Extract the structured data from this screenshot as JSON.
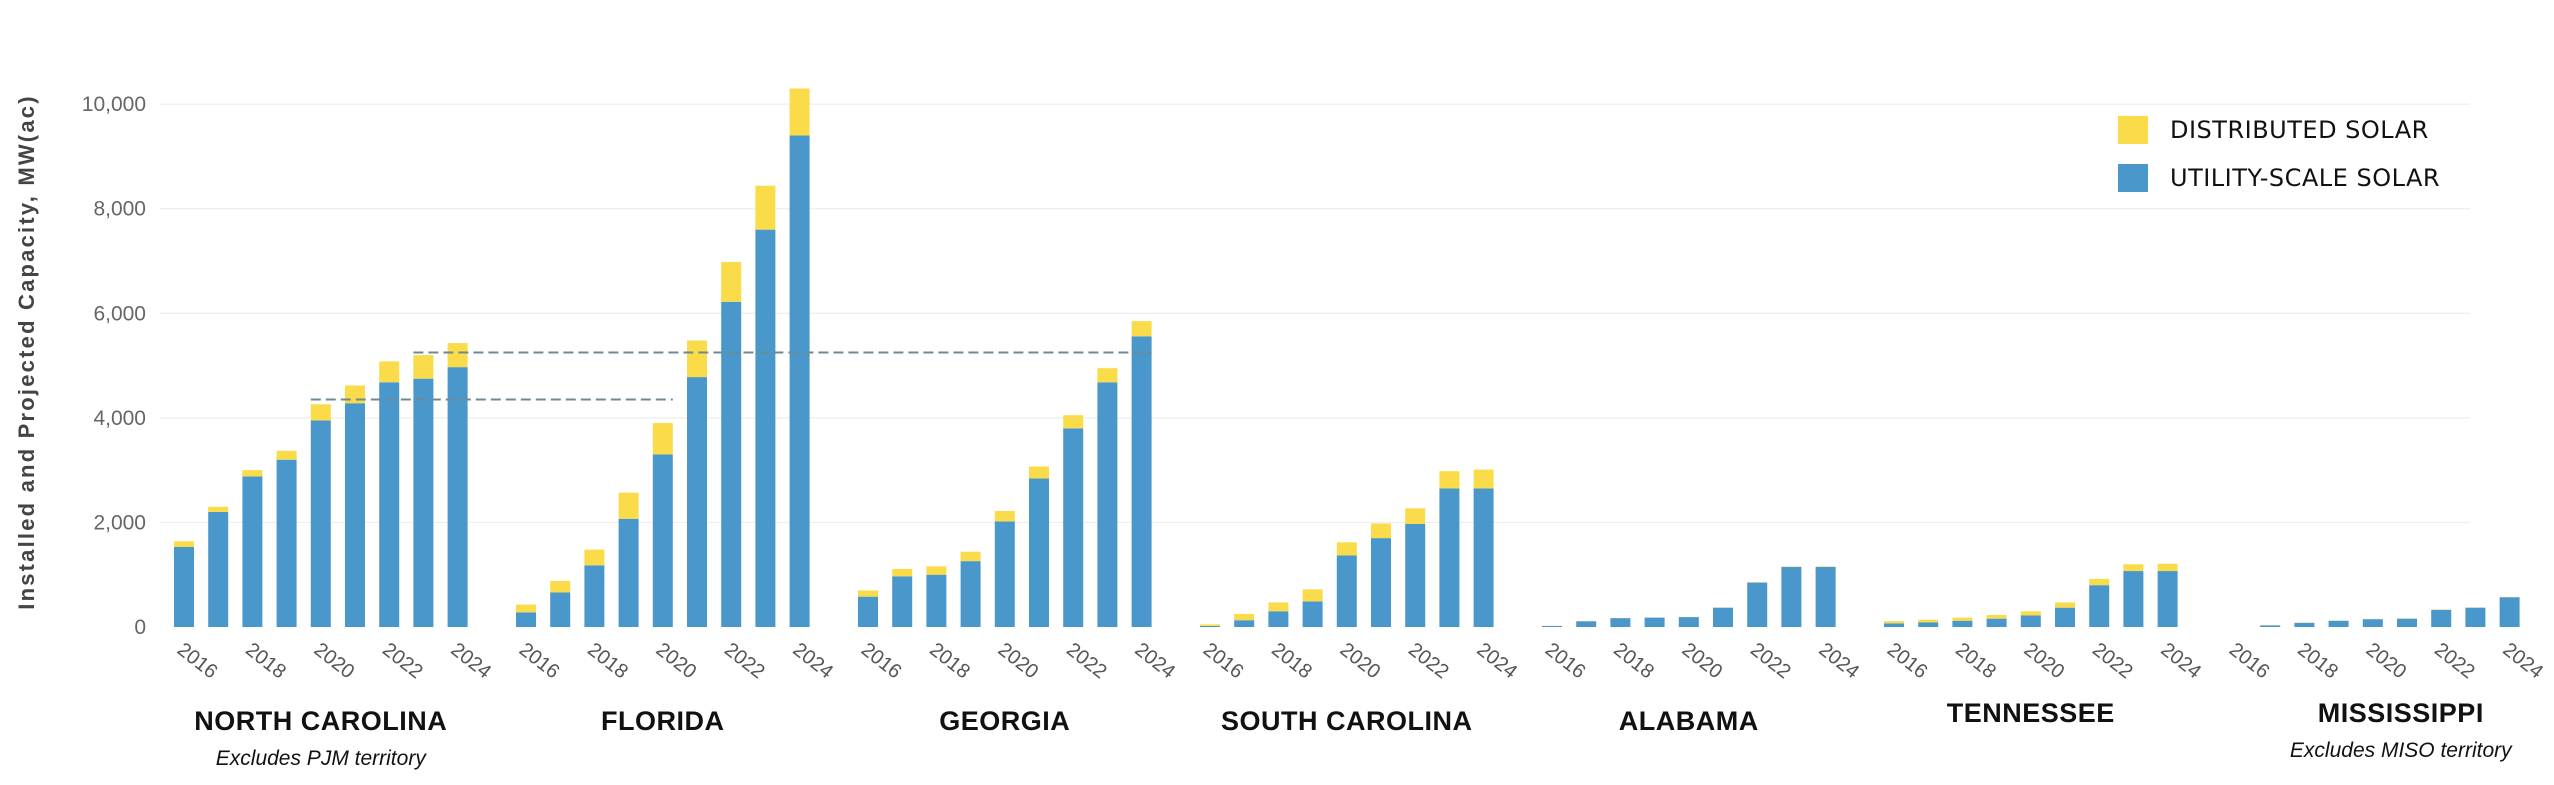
{
  "colors": {
    "distributed": "#FADB4A",
    "utility": "#4A98CB",
    "grid": "#eeeeee",
    "axis_text": "#666666",
    "dashed": "#6e8a95"
  },
  "legend": {
    "distributed_label": "DISTRIBUTED SOLAR",
    "utility_label": "UTILITY-SCALE SOLAR"
  },
  "chart_data": {
    "type": "bar",
    "stacked": true,
    "ylabel": "Installed and Projected Capacity, MW(ac)",
    "ylim": [
      0,
      10500
    ],
    "yticks": [
      "0",
      "2,000",
      "4,000",
      "6,000",
      "8,000",
      "10,000"
    ],
    "ytick_values": [
      0,
      2000,
      4000,
      6000,
      8000,
      10000
    ],
    "grid": true,
    "legend_position": "top-right",
    "years": [
      2016,
      2017,
      2018,
      2019,
      2020,
      2021,
      2022,
      2023,
      2024
    ],
    "year_labels": [
      "2016",
      "2018",
      "2020",
      "2022",
      "2024"
    ],
    "groups": [
      {
        "name": "NORTH CAROLINA",
        "note": "Excludes PJM territory",
        "utility": [
          1530,
          2200,
          2880,
          3200,
          3950,
          4280,
          4680,
          4750,
          4970
        ],
        "distributed": [
          110,
          100,
          120,
          170,
          310,
          340,
          400,
          450,
          460
        ]
      },
      {
        "name": "FLORIDA",
        "note": "",
        "utility": [
          280,
          660,
          1180,
          2070,
          3300,
          4780,
          6220,
          7600,
          9400
        ],
        "distributed": [
          150,
          220,
          300,
          500,
          600,
          700,
          760,
          840,
          900
        ]
      },
      {
        "name": "GEORGIA",
        "note": "",
        "utility": [
          580,
          970,
          1000,
          1260,
          2020,
          2840,
          3800,
          4680,
          5560
        ],
        "distributed": [
          120,
          140,
          160,
          180,
          200,
          230,
          250,
          270,
          290
        ]
      },
      {
        "name": "SOUTH CAROLINA",
        "note": "",
        "utility": [
          20,
          130,
          300,
          490,
          1370,
          1700,
          1970,
          2650,
          2650
        ],
        "distributed": [
          30,
          120,
          170,
          230,
          250,
          280,
          300,
          330,
          360
        ]
      },
      {
        "name": "ALABAMA",
        "note": "",
        "utility": [
          20,
          110,
          170,
          180,
          190,
          370,
          850,
          1150,
          1150
        ],
        "distributed": [
          2,
          3,
          3,
          3,
          4,
          5,
          6,
          7,
          8
        ]
      },
      {
        "name": "TENNESSEE",
        "note": "",
        "utility": [
          70,
          90,
          120,
          160,
          220,
          370,
          800,
          1070,
          1070
        ],
        "distributed": [
          40,
          50,
          60,
          70,
          80,
          100,
          120,
          130,
          140
        ]
      },
      {
        "name": "MISSISSIPPI",
        "note": "Excludes MISO territory",
        "utility": [
          0,
          30,
          80,
          120,
          150,
          160,
          330,
          370,
          570
        ],
        "distributed": [
          0,
          5,
          5,
          5,
          5,
          5,
          5,
          5,
          5
        ]
      }
    ],
    "reference_lines": [
      {
        "value": 4350,
        "from_group": 0,
        "from_index": 4,
        "to_group": 1,
        "to_index": 4
      },
      {
        "value": 5250,
        "from_group": 0,
        "from_index": 7,
        "to_group": 2,
        "to_index": 8
      }
    ]
  }
}
